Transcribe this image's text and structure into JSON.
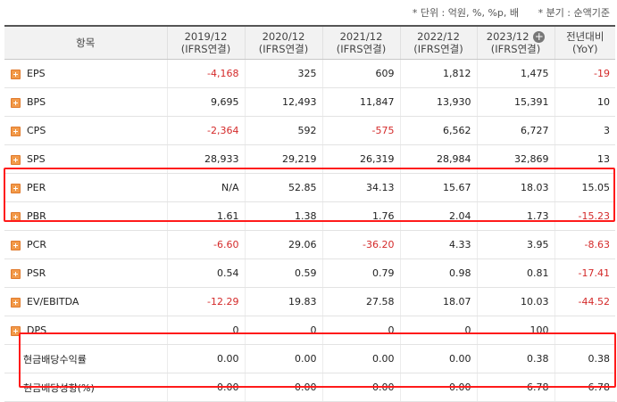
{
  "header": {
    "units_note": "* 단위 : 억원, %, %p, 배",
    "basis_note": "* 분기 : 순액기준"
  },
  "columns": {
    "item": "항목",
    "periods": [
      {
        "year": "2019/12",
        "basis": "(IFRS연결)"
      },
      {
        "year": "2020/12",
        "basis": "(IFRS연결)"
      },
      {
        "year": "2021/12",
        "basis": "(IFRS연결)"
      },
      {
        "year": "2022/12",
        "basis": "(IFRS연결)"
      },
      {
        "year": "2023/12",
        "basis": "(IFRS연결)"
      }
    ],
    "yoy": {
      "line1": "전년대비",
      "line2": "(YoY)"
    },
    "expand_icon": "+"
  },
  "rows": [
    {
      "label": "EPS",
      "values": [
        "-4,168",
        "325",
        "609",
        "1,812",
        "1,475"
      ],
      "yoy": "-19"
    },
    {
      "label": "BPS",
      "values": [
        "9,695",
        "12,493",
        "11,847",
        "13,930",
        "15,391"
      ],
      "yoy": "10"
    },
    {
      "label": "CPS",
      "values": [
        "-2,364",
        "592",
        "-575",
        "6,562",
        "6,727"
      ],
      "yoy": "3"
    },
    {
      "label": "SPS",
      "values": [
        "28,933",
        "29,219",
        "26,319",
        "28,984",
        "32,869"
      ],
      "yoy": "13"
    },
    {
      "label": "PER",
      "values": [
        "N/A",
        "52.85",
        "34.13",
        "15.67",
        "18.03"
      ],
      "yoy": "15.05"
    },
    {
      "label": "PBR",
      "values": [
        "1.61",
        "1.38",
        "1.76",
        "2.04",
        "1.73"
      ],
      "yoy": "-15.23"
    },
    {
      "label": "PCR",
      "values": [
        "-6.60",
        "29.06",
        "-36.20",
        "4.33",
        "3.95"
      ],
      "yoy": "-8.63"
    },
    {
      "label": "PSR",
      "values": [
        "0.54",
        "0.59",
        "0.79",
        "0.98",
        "0.81"
      ],
      "yoy": "-17.41"
    },
    {
      "label": "EV/EBITDA",
      "values": [
        "-12.29",
        "19.83",
        "27.58",
        "18.07",
        "10.03"
      ],
      "yoy": "-44.52"
    },
    {
      "label": "DPS",
      "values": [
        "0",
        "0",
        "0",
        "0",
        "100"
      ],
      "yoy": ""
    },
    {
      "label": "현금배당수익률",
      "values": [
        "0.00",
        "0.00",
        "0.00",
        "0.00",
        "0.38"
      ],
      "yoy": "0.38"
    },
    {
      "label": "현금배당성향(%)",
      "values": [
        "0.00",
        "0.00",
        "0.00",
        "0.00",
        "6.78"
      ],
      "yoy": "6.78"
    }
  ],
  "colors": {
    "negative": "#d42a2a",
    "highlight_box": "#ff1a1a",
    "expand_icon": "#f29a4a"
  }
}
